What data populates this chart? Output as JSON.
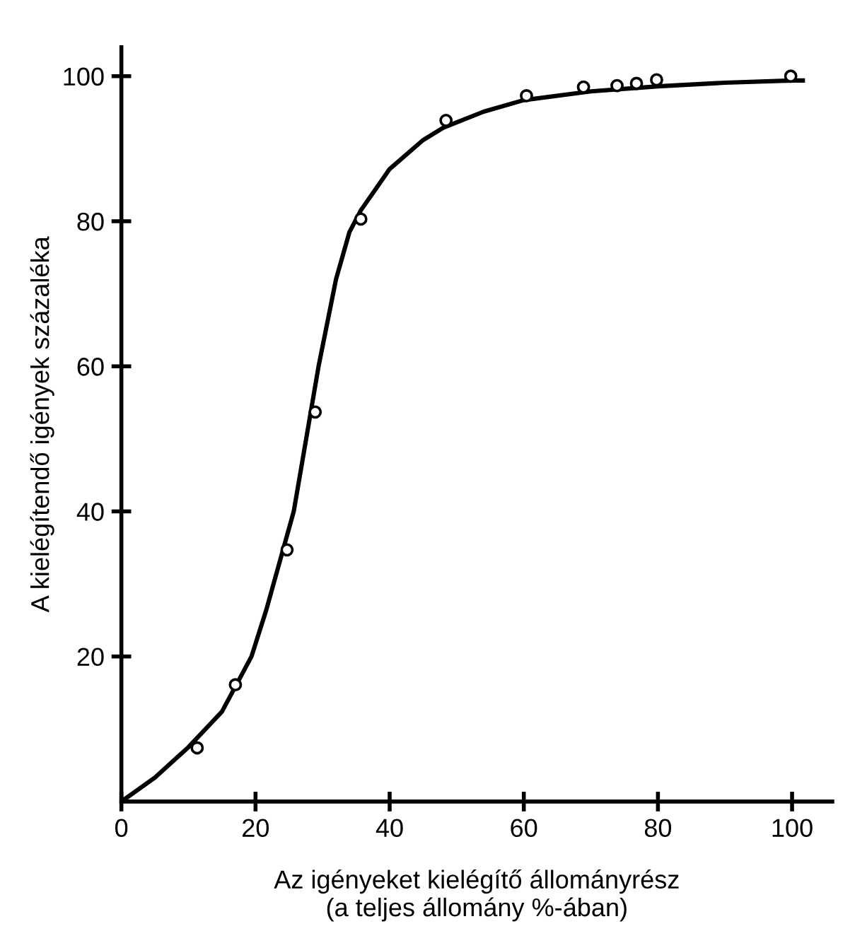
{
  "chart_data": {
    "type": "scatter",
    "xlabel": "Az igényeket kielégítő állományrész\n(a teljes állomány %-ában)",
    "ylabel": "A kielégítendő igények százaléka",
    "xlim": [
      0,
      106
    ],
    "ylim": [
      0,
      104
    ],
    "xticks": [
      0,
      20,
      40,
      60,
      80,
      100
    ],
    "yticks": [
      20,
      40,
      60,
      80,
      100
    ],
    "grid": false,
    "series": [
      {
        "color": "#000000",
        "marker": "circle",
        "x": [
          11.3,
          17.0,
          24.7,
          28.9,
          35.7,
          48.4,
          60.4,
          68.9,
          73.9,
          76.8,
          79.8,
          99.8
        ],
        "values": [
          7.4,
          16.1,
          34.7,
          53.7,
          80.3,
          93.9,
          97.3,
          98.5,
          98.7,
          99.0,
          99.5,
          100
        ]
      },
      {
        "type": "line",
        "color": "#000000",
        "marker": "none",
        "line_style": "solid",
        "x": [
          0,
          5,
          10,
          15,
          19.4,
          21.6,
          25.7,
          29.4,
          32,
          34,
          35.7,
          40,
          45,
          48,
          54,
          60,
          70,
          80,
          90,
          100,
          101.6
        ],
        "values": [
          0,
          3.3,
          7.5,
          12.4,
          20,
          26.4,
          40,
          60,
          72,
          78.5,
          81.5,
          87.2,
          91.2,
          92.9,
          95.1,
          96.7,
          97.9,
          98.6,
          99.1,
          99.4,
          99.4
        ]
      }
    ]
  }
}
